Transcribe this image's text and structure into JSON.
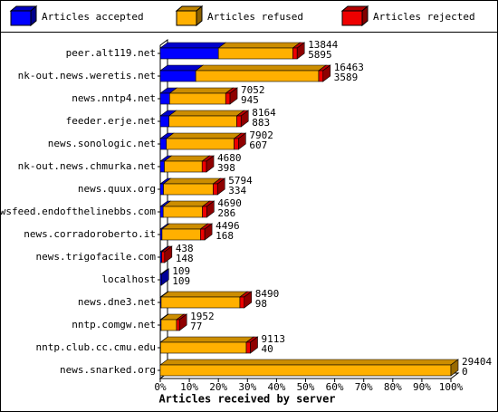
{
  "chart_data": {
    "type": "bar",
    "orientation": "horizontal",
    "stacked": true,
    "three_d": true,
    "xlabel": "Articles received by server",
    "categories": [
      "peer.alt119.net",
      "nk-out.news.weretis.net",
      "news.nntp4.net",
      "feeder.erje.net",
      "news.sonologic.net",
      "nk-out.news.chmurka.net",
      "news.quux.org",
      "newsfeed.endofthelinebbs.com",
      "news.corradoroberto.it",
      "news.trigofacile.com",
      "localhost",
      "news.dne3.net",
      "nntp.comgw.net",
      "nntp.club.cc.cmu.edu",
      "news.snarked.org"
    ],
    "series": [
      {
        "name": "Articles accepted",
        "color": "#0000ff",
        "values": [
          20.0,
          12.2,
          3.2,
          3.0,
          2.1,
          1.4,
          1.1,
          1.0,
          0.6,
          0.5,
          0.4,
          0.3,
          0.3,
          0.1,
          0
        ]
      },
      {
        "name": "Articles refused",
        "color": "#ffb000",
        "values": [
          25.6,
          42.3,
          19.3,
          23.3,
          23.3,
          13.0,
          17.1,
          13.5,
          13.2,
          0,
          0,
          27.1,
          5.3,
          29.5,
          100
        ]
      },
      {
        "name": "Articles rejected",
        "color": "#ee0000",
        "values": [
          1.5,
          1.5,
          1.5,
          1.5,
          1.5,
          1.5,
          1.5,
          1.5,
          1.5,
          1.0,
          0,
          1.5,
          1.0,
          1.4,
          0
        ]
      }
    ],
    "bar_labels": [
      [
        13844,
        5895
      ],
      [
        16463,
        3589
      ],
      [
        7052,
        945
      ],
      [
        8164,
        883
      ],
      [
        7902,
        607
      ],
      [
        4680,
        398
      ],
      [
        5794,
        334
      ],
      [
        4690,
        286
      ],
      [
        4496,
        168
      ],
      [
        438,
        148
      ],
      [
        109,
        109
      ],
      [
        8490,
        98
      ],
      [
        1952,
        77
      ],
      [
        9113,
        40
      ],
      [
        29404,
        0
      ]
    ],
    "xlim": [
      0,
      100
    ],
    "xticks": [
      {
        "value": 0,
        "label": "0%"
      },
      {
        "value": 10,
        "label": "10%"
      },
      {
        "value": 20,
        "label": "20%"
      },
      {
        "value": 30,
        "label": "30%"
      },
      {
        "value": 40,
        "label": "40%"
      },
      {
        "value": 50,
        "label": "50%"
      },
      {
        "value": 60,
        "label": "60%"
      },
      {
        "value": 70,
        "label": "70%"
      },
      {
        "value": 80,
        "label": "80%"
      },
      {
        "value": 90,
        "label": "90%"
      },
      {
        "value": 100,
        "label": "100%"
      }
    ]
  }
}
